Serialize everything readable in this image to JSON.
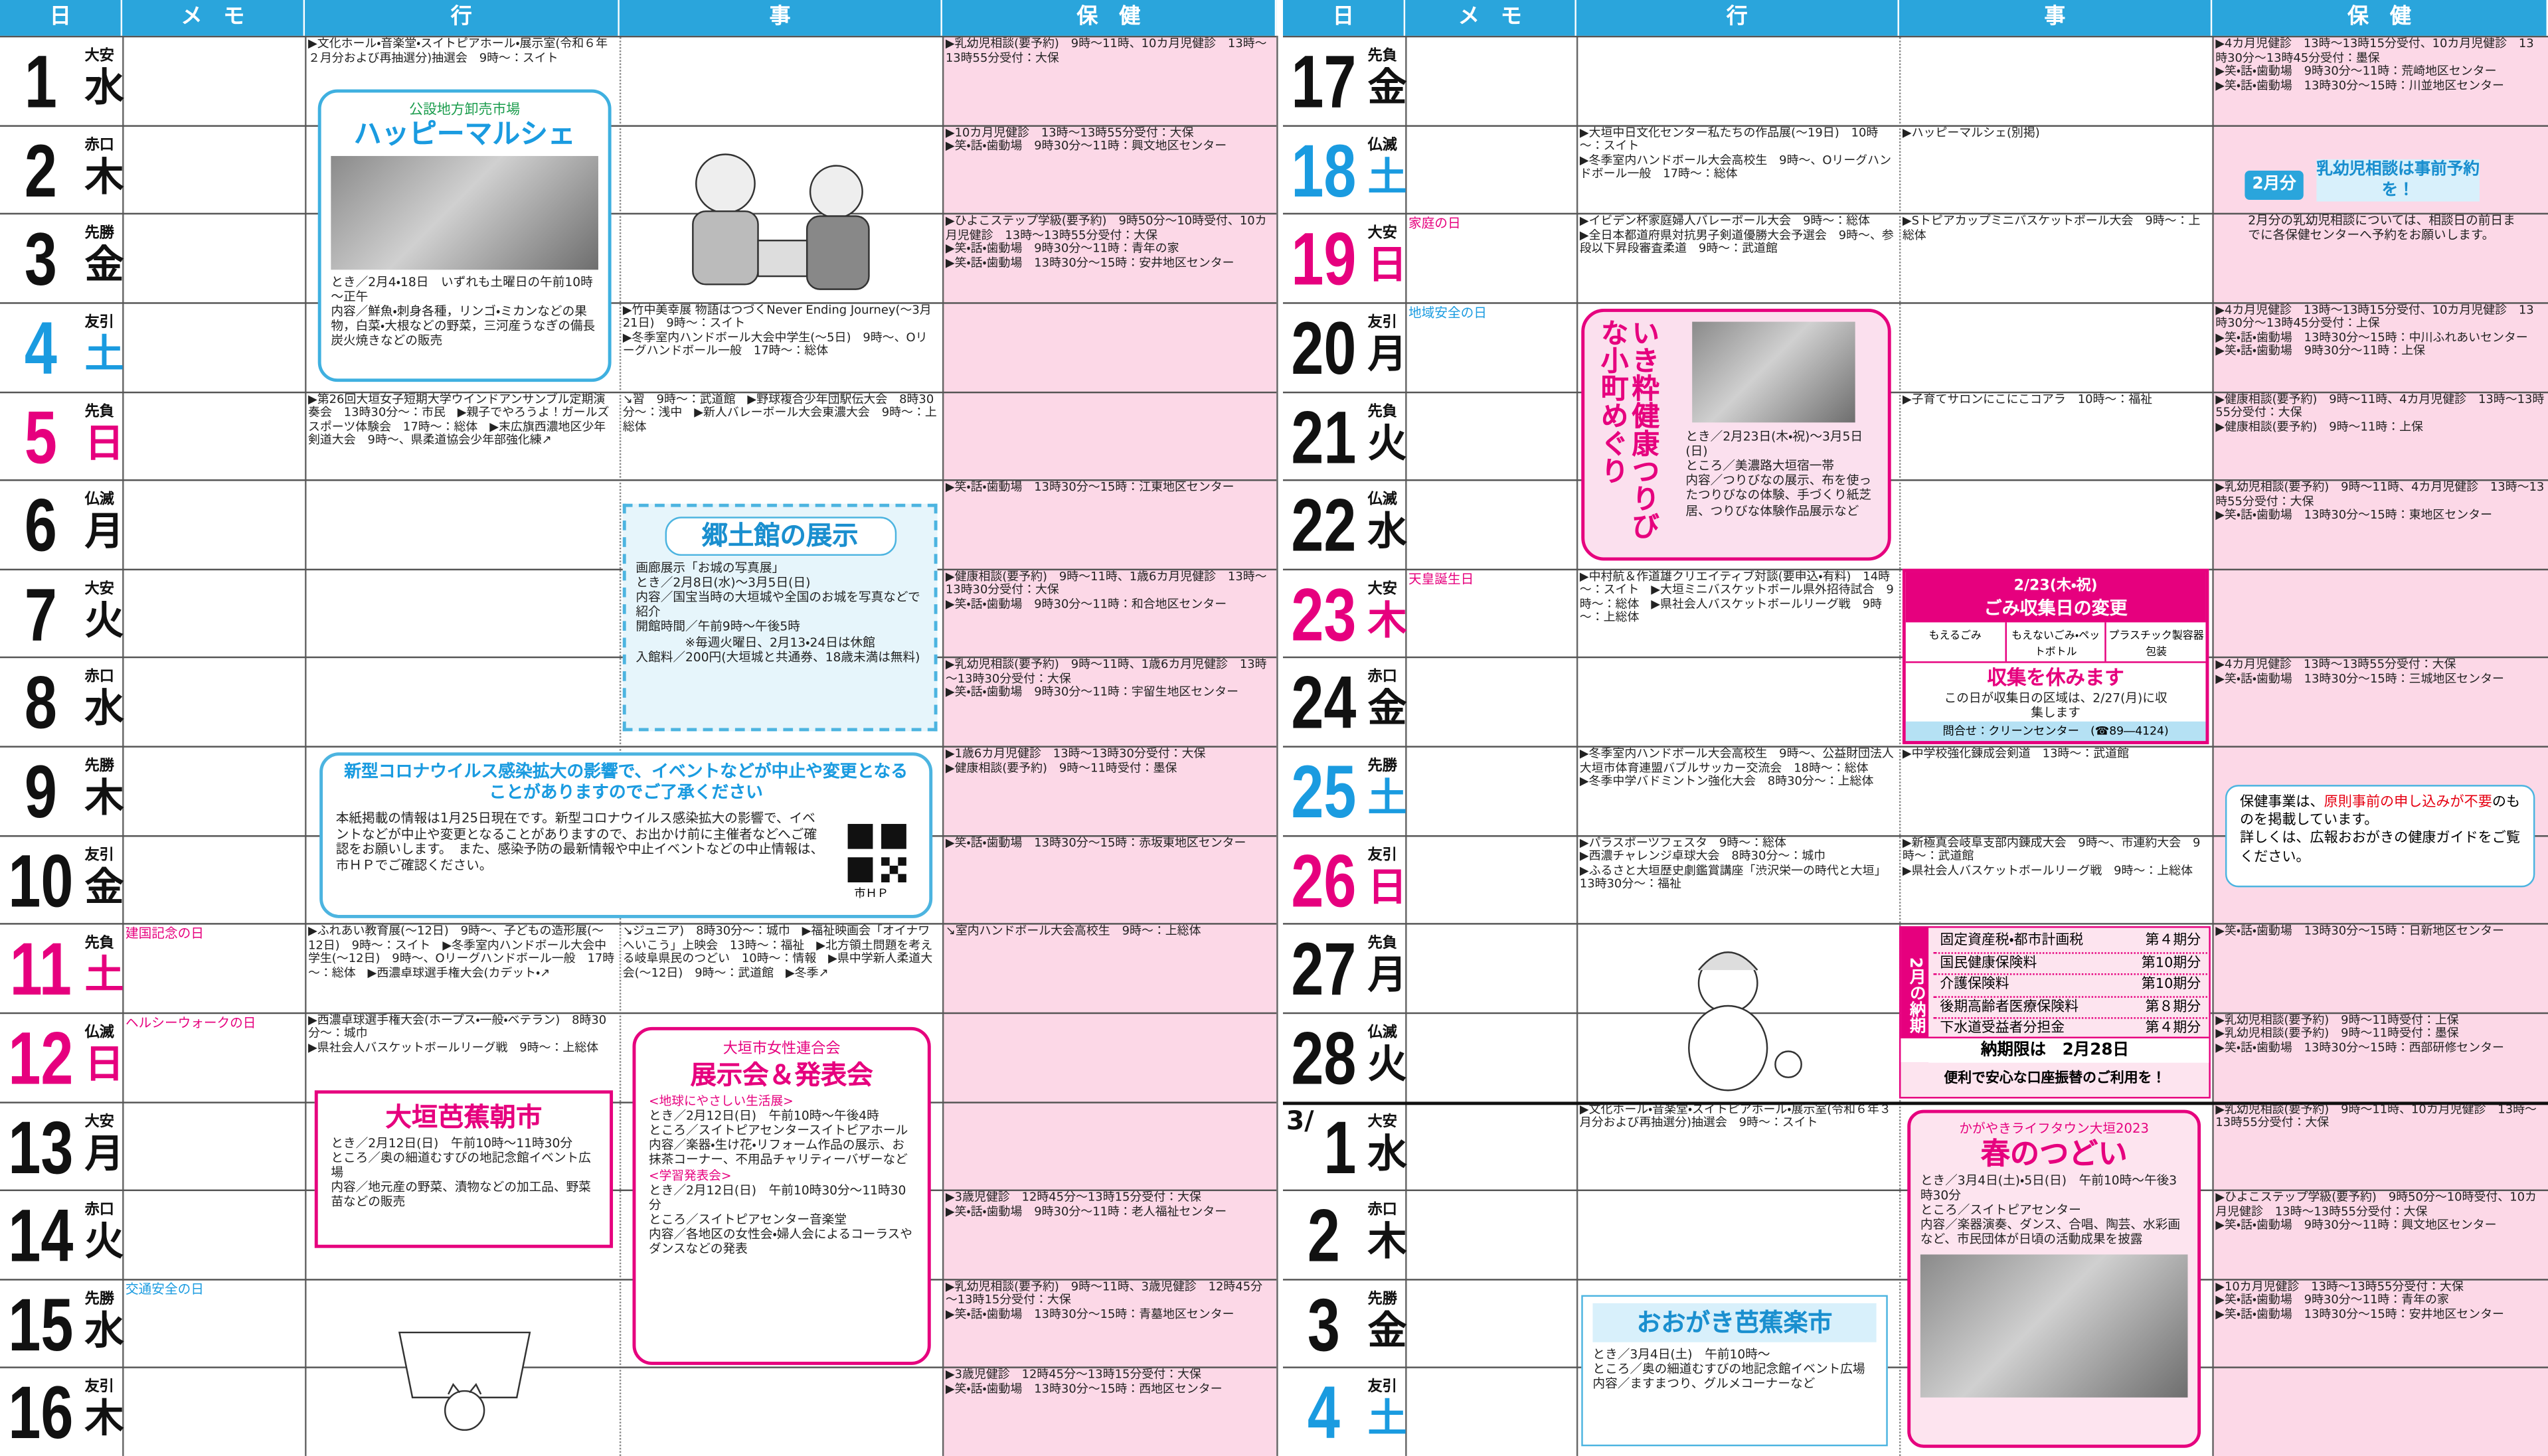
{
  "headers": [
    "日",
    "メ　モ",
    "行",
    "事",
    "保　健"
  ],
  "days": [
    {
      "date": "1",
      "rokuyo": "大安",
      "weekday": "水",
      "gyou": [
        "▶文化ホール・音楽堂・スイトピアホール・展示室(令和６年２月分および再抽選分)抽選会　9時～：スイト"
      ],
      "health": [
        "▶乳幼児相談(要予約)　9時～11時、10カ月児健診　13時～13時55分受付：大保"
      ]
    },
    {
      "date": "2",
      "rokuyo": "赤口",
      "weekday": "木",
      "health": [
        "▶10カ月児健診　13時～13時55分受付：大保",
        "▶笑・話・歯動場　9時30分～11時：興文地区センター"
      ]
    },
    {
      "date": "3",
      "rokuyo": "先勝",
      "weekday": "金",
      "health": [
        "▶ひよこステップ学級(要予約)　9時50分～10時受付、10カ月児健診　13時～13時55分受付：大保",
        "▶笑・話・歯動場　9時30分～11時：青年の家",
        "▶笑・話・歯動場　13時30分～15時：安井地区センター"
      ]
    },
    {
      "date": "4",
      "rokuyo": "友引",
      "weekday": "土",
      "color": "#1a9be0",
      "ji": [
        "▶竹中美幸展 物語はつづくNever Ending Journey(～3月21日)　9時～：スイト",
        "▶冬季室内ハンドボール大会中学生(～5日)　9時～、Oリーグハンドボール一般　17時～：総体"
      ]
    },
    {
      "date": "5",
      "rokuyo": "先負",
      "weekday": "日",
      "color": "#e6007e",
      "gyou": [
        "▶第26回大垣女子短期大学ウインドアンサンブル定期演奏会　13時30分～：市民　▶親子でやろうよ！ガールズスポーツ体験会　17時～：総体　▶末広旗西濃地区少年剣道大会　9時～、県柔道協会少年部強化練↗"
      ],
      "ji": [
        "↘習　9時～：武道館　▶野球複合少年団駅伝大会　8時30分～：浅中　▶新人バレーボール大会東濃大会　9時～：上総体"
      ]
    },
    {
      "date": "6",
      "rokuyo": "仏滅",
      "weekday": "月",
      "health": [
        "▶笑・話・歯動場　13時30分～15時：江東地区センター"
      ]
    },
    {
      "date": "7",
      "rokuyo": "大安",
      "weekday": "火",
      "health": [
        "▶健康相談(要予約)　9時～11時、1歳6カ月児健診　13時～13時30分受付：大保",
        "▶笑・話・歯動場　9時30分～11時：和合地区センター"
      ]
    },
    {
      "date": "8",
      "rokuyo": "赤口",
      "weekday": "水",
      "health": [
        "▶乳幼児相談(要予約)　9時～11時、1歳6カ月児健診　13時～13時30分受付：大保",
        "▶笑・話・歯動場　9時30分～11時：宇留生地区センター"
      ]
    },
    {
      "date": "9",
      "rokuyo": "先勝",
      "weekday": "木",
      "health": [
        "▶1歳6カ月児健診　13時～13時30分受付：大保",
        "▶健康相談(要予約)　9時～11時受付：墨保"
      ]
    },
    {
      "date": "10",
      "rokuyo": "友引",
      "weekday": "金",
      "health": [
        "▶笑・話・歯動場　13時30分～15時：赤坂東地区センター"
      ]
    },
    {
      "date": "11",
      "rokuyo": "先負",
      "weekday": "土",
      "color": "#e6007e",
      "memo": "建国記念の日",
      "memo_color": "#e6007e",
      "gyou": [
        "▶ふれあい教育展(～12日)　9時～、子どもの造形展(～12日)　9時～：スイト　▶冬季室内ハンドボール大会中学生(～12日)　9時～、Oリーグハンドボール一般　17時～：総体　▶西濃卓球選手権大会(カデット・↗"
      ],
      "ji": [
        "↘ジュニア)　8時30分～：城巾　▶福祉映画会「オイナワへいこう」上映会　13時～：福祉　▶北方領土問題を考える岐阜県民のつどい　10時～：情報　▶県中学新人柔道大会(～12日)　9時～：武道館　▶冬季↗"
      ],
      "health": [
        "↘室内ハンドボール大会高校生　9時～：上総体"
      ]
    },
    {
      "date": "12",
      "rokuyo": "仏滅",
      "weekday": "日",
      "color": "#e6007e",
      "memo": "ヘルシーウォークの日",
      "memo_color": "#e6007e",
      "gyou": [
        "▶西濃卓球選手権大会(ホープス・一般・ベテラン)　8時30分～：城巾",
        "▶県社会人バスケットボールリーグ戦　9時～：上総体"
      ]
    },
    {
      "date": "13",
      "rokuyo": "大安",
      "weekday": "月"
    },
    {
      "date": "14",
      "rokuyo": "赤口",
      "weekday": "火",
      "health": [
        "▶3歳児健診　12時45分～13時15分受付：大保",
        "▶笑・話・歯動場　9時30分～11時：老人福祉センター"
      ]
    },
    {
      "date": "15",
      "rokuyo": "先勝",
      "weekday": "水",
      "memo": "交通安全の日",
      "memo_color": "#1a9be0",
      "health": [
        "▶乳幼児相談(要予約)　9時～11時、3歳児健診　12時45分～13時15分受付：大保",
        "▶笑・話・歯動場　13時30分～15時：青墓地区センター"
      ]
    },
    {
      "date": "16",
      "rokuyo": "友引",
      "weekday": "木",
      "health": [
        "▶3歳児健診　12時45分～13時15分受付：大保",
        "▶笑・話・歯動場　13時30分～15時：西地区センター"
      ]
    },
    {
      "date": "17",
      "rokuyo": "先負",
      "weekday": "金",
      "health": [
        "▶4カ月児健診　13時～13時15分受付、10カ月児健診　13時30分～13時45分受付：墨保",
        "▶笑・話・歯動場　9時30分～11時：荒崎地区センター",
        "▶笑・話・歯動場　13時30分～15時：川並地区センター"
      ]
    },
    {
      "date": "18",
      "rokuyo": "仏滅",
      "weekday": "土",
      "color": "#1a9be0",
      "gyou": [
        "▶大垣中日文化センター私たちの作品展(～19日)　10時～：スイト",
        "▶冬季室内ハンドボール大会高校生　9時～、Oリーグハンドボール一般　17時～：総体"
      ],
      "ji": [
        "▶ハッピーマルシェ(別掲)"
      ]
    },
    {
      "date": "19",
      "rokuyo": "大安",
      "weekday": "日",
      "color": "#e6007e",
      "memo": "家庭の日",
      "memo_color": "#e6007e",
      "gyou": [
        "▶イビデン杯家庭婦人バレーボール大会　9時～：総体",
        "▶全日本都道府県対抗男子剣道優勝大会予選会　9時～、参段以下昇段審査柔道　9時～：武道館"
      ],
      "ji": [
        "▶Sトピアカップミニバスケットボール大会　9時～：上総体"
      ]
    },
    {
      "date": "20",
      "rokuyo": "友引",
      "weekday": "月",
      "memo": "地域安全の日",
      "memo_color": "#1a9be0",
      "health": [
        "▶4カ月児健診　13時～13時15分受付、10カ月児健診　13時30分～13時45分受付：上保",
        "▶笑・話・歯動場　13時30分～15時：中川ふれあいセンター",
        "▶笑・話・歯動場　9時30分～11時：上保"
      ]
    },
    {
      "date": "21",
      "rokuyo": "先負",
      "weekday": "火",
      "ji": [
        "▶子育てサロンにこにこコアラ　10時～：福祉"
      ],
      "health": [
        "▶健康相談(要予約)　9時～11時、4カ月児健診　13時～13時55分受付：大保",
        "▶健康相談(要予約)　9時～11時：上保"
      ]
    },
    {
      "date": "22",
      "rokuyo": "仏滅",
      "weekday": "水",
      "health": [
        "▶乳幼児相談(要予約)　9時～11時、4カ月児健診　13時～13時55分受付：大保",
        "▶笑・話・歯動場　13時30分～15時：東地区センター"
      ]
    },
    {
      "date": "23",
      "rokuyo": "大安",
      "weekday": "木",
      "color": "#e6007e",
      "memo": "天皇誕生日",
      "memo_color": "#e6007e",
      "gyou": [
        "▶中村航＆作道雄クリエイティブ対談(要申込・有料)　14時～：スイト　▶大垣ミニバスケットボール県外招待試合　9時～：総体　▶県社会人バスケットボールリーグ戦　9時～：上総体"
      ]
    },
    {
      "date": "24",
      "rokuyo": "赤口",
      "weekday": "金",
      "health": [
        "▶4カ月児健診　13時～13時55分受付：大保",
        "▶笑・話・歯動場　13時30分～15時：三城地区センター"
      ]
    },
    {
      "date": "25",
      "rokuyo": "先勝",
      "weekday": "土",
      "color": "#1a9be0",
      "gyou": [
        "▶冬季室内ハンドボール大会高校生　9時～、公益財団法人大垣市体育連盟バブルサッカー交流会　18時～：総体",
        "▶冬季中学バドミントン強化大会　8時30分～：上総体"
      ],
      "ji": [
        "▶中学校強化錬成会剣道　13時～：武道館"
      ]
    },
    {
      "date": "26",
      "rokuyo": "友引",
      "weekday": "日",
      "color": "#e6007e",
      "gyou": [
        "▶パラスポーツフェスタ　9時～：総体",
        "▶西濃チャレンジ卓球大会　8時30分～：城巾",
        "▶ふるさと大垣歴史劇鑑賞講座「渋沢栄一の時代と大垣」　13時30分～：福祉"
      ],
      "ji": [
        "▶新極真会岐阜支部内錬成大会　9時～、市連約大会　9時～：武道館",
        "▶県社会人バスケットボールリーグ戦　9時～：上総体"
      ]
    },
    {
      "date": "27",
      "rokuyo": "先負",
      "weekday": "月",
      "health": [
        "▶笑・話・歯動場　13時30分～15時：日新地区センター"
      ]
    },
    {
      "date": "28",
      "rokuyo": "仏滅",
      "weekday": "火",
      "health": [
        "▶乳幼児相談(要予約)　9時～11時受付：上保",
        "▶乳幼児相談(要予約)　9時～11時受付：墨保",
        "▶笑・話・歯動場　13時30分～15時：西部研修センター"
      ]
    },
    {
      "month": "3/",
      "date": "1",
      "rokuyo": "大安",
      "weekday": "水",
      "gyou": [
        "▶文化ホール・音楽堂・スイトピアホール・展示室(令和６年３月分および再抽選分)抽選会　9時～：スイト"
      ],
      "health": [
        "▶乳幼児相談(要予約)　9時～11時、10カ月児健診　13時～13時55分受付：大保"
      ]
    },
    {
      "date": "2",
      "rokuyo": "赤口",
      "weekday": "木",
      "health": [
        "▶ひよこステップ学級(要予約)　9時50分～10時受付、10カ月児健診　13時～13時55分受付：大保",
        "▶笑・話・歯動場　9時30分～11時：興文地区センター"
      ]
    },
    {
      "date": "3",
      "rokuyo": "先勝",
      "weekday": "金",
      "health": [
        "▶10カ月児健診　13時～13時55分受付：大保",
        "▶笑・話・歯動場　9時30分～11時：青年の家",
        "▶笑・話・歯動場　13時30分～15時：安井地区センター"
      ]
    },
    {
      "date": "4",
      "rokuyo": "友引",
      "weekday": "土",
      "color": "#1a9be0"
    }
  ],
  "boxes": {
    "happy_marche": {
      "subtitle": "公設地方卸売市場",
      "title": "ハッピーマルシェ",
      "lines": [
        "とき／2月4・18日　いずれも土曜日の午前10時～正午",
        "内容／鮮魚・刺身各種，リンゴ・ミカンなどの果物，白菜・大根などの野菜，三河産うなぎの備長炭火焼きなどの販売"
      ]
    },
    "kyodokan": {
      "title": "郷土館の展示",
      "lines": [
        "画廊展示「お城の写真展」",
        "とき／2月8日(水)～3月5日(日)",
        "内容／国宝当時の大垣城や全国のお城を写真などで紹介",
        "開館時間／午前9時～午後5時",
        "※毎週火曜日、2月13・24日は休館",
        "入館料／200円(大垣城と共通券、18歳未満は無料)"
      ]
    },
    "corona": {
      "title": "新型コロナウイルス感染拡大の影響で、イベントなどが中止や変更となることがありますのでご了承ください",
      "body": "本紙掲載の情報は1月25日現在です。新型コロナウイルス感染拡大の影響で、イベントなどが中止や変更となることがありますので、お出かけ前に主催者などへご確認をお願いします。　また、感染予防の最新情報や中止イベントなどの中止情報は、市ＨＰでご確認ください。",
      "qr_label": "市ＨＰ"
    },
    "asaichi": {
      "title": "大垣芭蕉朝市",
      "lines": [
        "とき／2月12日(日)　午前10時～11時30分",
        "ところ／奥の細道むすびの地記念館イベント広場",
        "内容／地元産の野菜、漬物などの加工品、野菜苗などの販売"
      ]
    },
    "josei": {
      "subtitle": "大垣市女性連合会",
      "title": "展示会＆発表会",
      "section1": "<地球にやさしい生活展>",
      "lines1": [
        "とき／2月12日(日)　午前10時～午後4時",
        "ところ／スイトピアセンタースイトピアホール",
        "内容／楽器・生け花・リフォーム作品の展示、お抹茶コーナー、不用品チャリティーバザーなど"
      ],
      "section2": "<学習発表会>",
      "lines2": [
        "とき／2月12日(日)　午前10時30分～11時30分",
        "ところ／スイトピアセンター音楽堂",
        "内容／各地区の女性会・婦人会によるコーラスやダンスなどの発表"
      ]
    },
    "tsuribina": {
      "title": "いき粋健康つりびな小町めぐり",
      "lines": [
        "とき／2月23日(木・祝)～3月5日(日)",
        "ところ／美濃路大垣宿一帯",
        "内容／つりびなの展示、布を使ったつりびなの体験、手づくり紙芝居、つりびな体験作品展示など"
      ]
    },
    "gomi": {
      "date": "2/23(木・祝)",
      "title": "ごみ収集日の変更",
      "kinds": [
        "もえるごみ",
        "もえないごみ・ペットボトル",
        "プラスチック製容器包装"
      ],
      "notice": "収集を休みます",
      "note": "この日が収集日の区域は、2/27(月)に収集します",
      "contact": "問合せ：クリーンセンター　(☎89―4124)"
    },
    "nyuyoji": {
      "badge": "2月分",
      "title": "乳幼児相談は事前予約を！",
      "text": "2月分の乳幼児相談については、相談日の前日までに各保健センターへ予約をお願いします。"
    },
    "hoken_notice": {
      "parts": [
        "保健事業は、",
        "原則事前の申し込みが不要",
        "のものを掲載しています。",
        "詳しくは、広報おおがきの健康ガイドをご覧ください。"
      ]
    },
    "nouki": {
      "label": "2月の納期",
      "rows": [
        [
          "固定資産税・都市計画税",
          "第４期分"
        ],
        [
          "国民健康保険料",
          "第10期分"
        ],
        [
          "介護保険料",
          "第10期分"
        ],
        [
          "後期高齢者医療保険料",
          "第８期分"
        ],
        [
          "下水道受益者分担金",
          "第４期分"
        ]
      ],
      "deadline": "納期限は　2月28日",
      "footer": "便利で安心な口座振替のご利用を！"
    },
    "haru": {
      "subtitle": "かがやきライフタウン大垣2023",
      "title": "春のつどい",
      "lines": [
        "とき／3月4日(土)・5日(日)　午前10時～午後3時30分",
        "ところ／スイトピアセンター",
        "内容／楽器演奏、ダンス、合唱、陶芸、水彩画など、市民団体が日頃の活動成果を披露"
      ]
    },
    "rakuichi": {
      "title": "おおがき芭蕉楽市",
      "lines": [
        "とき／3月4日(土)　午前10時～",
        "ところ／奥の細道むすびの地記念館イベント広場",
        "内容／ますまつり、グルメコーナーなど"
      ]
    }
  }
}
